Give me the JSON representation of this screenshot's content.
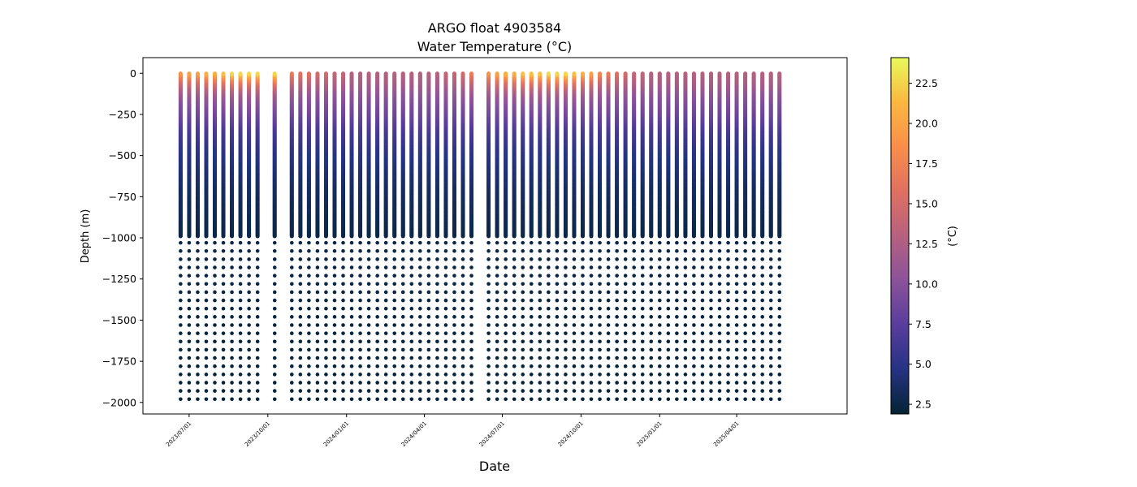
{
  "chart_data": {
    "type": "scatter",
    "title": "ARGO float 4903584",
    "subtitle": "Water Temperature (°C)",
    "xlabel": "Date",
    "ylabel": "Depth (m)",
    "colorbar_label": "(°C)",
    "colormap": "thermal",
    "colormap_stops": [
      "#042333",
      "#253383",
      "#593d9c",
      "#8b529a",
      "#b6617f",
      "#e07060",
      "#f98e4a",
      "#fbb740",
      "#e8fa5b"
    ],
    "grid": false,
    "legend": "none",
    "xlim": [
      "2023-05-08",
      "2025-08-08"
    ],
    "ylim": [
      -2070,
      95
    ],
    "clim": [
      1.9,
      24.1
    ],
    "x_ticks": [
      "2023-07-01",
      "2023-10-01",
      "2024-01-01",
      "2024-04-01",
      "2024-07-01",
      "2024-10-01",
      "2025-01-01",
      "2025-04-01"
    ],
    "x_tick_labels": [
      "2023/07/01",
      "2023/10/01",
      "2024/01/01",
      "2024/04/01",
      "2024/07/01",
      "2024/10/01",
      "2025/01/01",
      "2025/04/01"
    ],
    "y_ticks": [
      0,
      -250,
      -500,
      -750,
      -1000,
      -1250,
      -1500,
      -1750,
      -2000
    ],
    "y_tick_labels": [
      "0",
      "−250",
      "−500",
      "−750",
      "−1000",
      "−1250",
      "−1500",
      "−1750",
      "−2000"
    ],
    "colorbar_ticks": [
      2.5,
      5.0,
      7.5,
      10.0,
      12.5,
      15.0,
      17.5,
      20.0,
      22.5
    ],
    "colorbar_tick_labels": [
      "2.5",
      "5.0",
      "7.5",
      "10.0",
      "12.5",
      "15.0",
      "17.5",
      "20.0",
      "22.5"
    ],
    "profile_dates": [
      "2023-06-21",
      "2023-07-01",
      "2023-07-11",
      "2023-07-21",
      "2023-07-31",
      "2023-08-10",
      "2023-08-20",
      "2023-08-30",
      "2023-09-09",
      "2023-09-19",
      "2023-10-09",
      "2023-10-29",
      "2023-11-08",
      "2023-11-18",
      "2023-11-28",
      "2023-12-08",
      "2023-12-18",
      "2023-12-28",
      "2024-01-07",
      "2024-01-17",
      "2024-01-27",
      "2024-02-06",
      "2024-02-16",
      "2024-02-26",
      "2024-03-07",
      "2024-03-17",
      "2024-03-27",
      "2024-04-06",
      "2024-04-16",
      "2024-04-26",
      "2024-05-06",
      "2024-05-16",
      "2024-05-26",
      "2024-06-15",
      "2024-06-25",
      "2024-07-05",
      "2024-07-15",
      "2024-07-25",
      "2024-08-04",
      "2024-08-14",
      "2024-08-24",
      "2024-09-03",
      "2024-09-13",
      "2024-09-23",
      "2024-10-03",
      "2024-10-13",
      "2024-10-23",
      "2024-11-02",
      "2024-11-12",
      "2024-11-22",
      "2024-12-02",
      "2024-12-12",
      "2024-12-22",
      "2025-01-01",
      "2025-01-11",
      "2025-01-21",
      "2025-01-31",
      "2025-02-10",
      "2025-02-20",
      "2025-03-02",
      "2025-03-12",
      "2025-03-22",
      "2025-04-01",
      "2025-04-11",
      "2025-04-21",
      "2025-05-01",
      "2025-05-11",
      "2025-05-21"
    ],
    "surface_temperature": [
      19,
      20,
      20,
      21,
      21,
      22,
      23,
      23,
      23,
      23,
      23,
      17,
      16,
      16,
      15,
      15,
      14,
      14,
      13,
      13,
      13,
      13,
      13,
      13,
      13,
      13,
      13,
      13,
      13,
      14,
      14,
      15,
      17,
      19,
      20,
      21,
      21,
      22,
      22,
      22,
      23,
      23,
      23,
      22,
      21,
      20,
      18,
      17,
      16,
      15,
      14,
      14,
      13,
      13,
      13,
      13,
      13,
      13,
      13,
      13,
      13,
      13,
      13,
      13,
      13,
      13,
      13,
      13
    ],
    "temperature_profile": {
      "depth": [
        0,
        -60,
        -150,
        -250,
        -350,
        -450,
        -550,
        -700,
        -850,
        -1000,
        -1500,
        -2000
      ],
      "temperature": [
        13,
        12,
        10,
        8.5,
        6.5,
        5.2,
        4.4,
        3.5,
        3.0,
        2.6,
        2.3,
        2.1
      ]
    },
    "depth_sampling": {
      "upper": {
        "from": 0,
        "to": -990,
        "step": -4
      },
      "lower": {
        "from": -1030,
        "to": -1980,
        "step": -50
      }
    }
  }
}
